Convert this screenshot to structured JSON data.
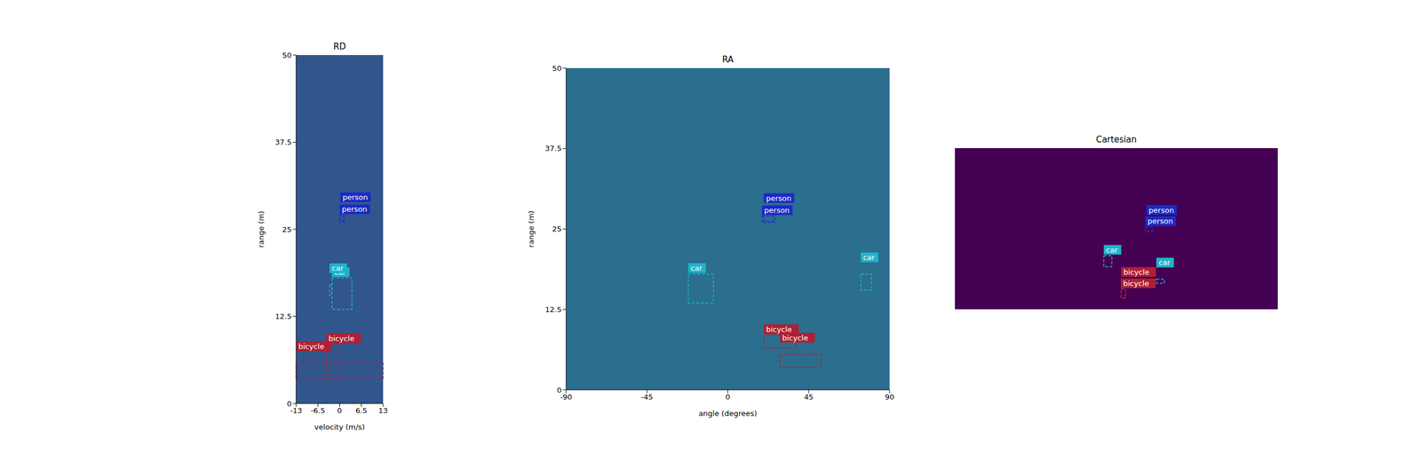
{
  "chart_data": [
    {
      "type": "boxes",
      "title": "RD",
      "x_label": "velocity (m/s)",
      "y_label": "range (m)",
      "xlim": [
        -13,
        13
      ],
      "xticks": [
        -13,
        -6.5,
        0,
        6.5,
        13
      ],
      "ylim": [
        0,
        50
      ],
      "yticks": [
        0,
        12.5,
        25,
        37.5,
        50
      ],
      "series": [
        {
          "name": "person",
          "color": "#1c2bc4",
          "boxes": [
            {
              "x": [
                0,
                1.3
              ],
              "y": [
                26,
                27
              ]
            },
            {
              "x": [
                0.2,
                1.2
              ],
              "y": [
                26.2,
                27.2
              ]
            }
          ]
        },
        {
          "name": "car",
          "color": "#1fb5c9",
          "boxes": [
            {
              "x": [
                -2.3,
                3.7
              ],
              "y": [
                13.5,
                18
              ]
            },
            {
              "x": [
                -3,
                -2.3
              ],
              "y": [
                15.5,
                17
              ]
            }
          ]
        },
        {
          "name": "bicycle",
          "color": "#b01f32",
          "boxes": [
            {
              "x": [
                -4,
                0.5
              ],
              "y": [
                3.5,
                8.5
              ]
            },
            {
              "x": [
                -13,
                13
              ],
              "y": [
                3.5,
                5.8
              ]
            }
          ]
        }
      ]
    },
    {
      "type": "boxes",
      "title": "RA",
      "x_label": "angle (degrees)",
      "y_label": "range (m)",
      "xlim": [
        -90,
        90
      ],
      "xticks": [
        -90,
        -45,
        0,
        45,
        90
      ],
      "ylim": [
        0,
        50
      ],
      "yticks": [
        0,
        12.5,
        25,
        37.5,
        50
      ],
      "series": [
        {
          "name": "person",
          "color": "#1c2bc4",
          "boxes": [
            {
              "x": [
                19,
                26
              ],
              "y": [
                26,
                27
              ]
            },
            {
              "x": [
                20,
                26
              ],
              "y": [
                26.2,
                27.2
              ]
            }
          ]
        },
        {
          "name": "car",
          "color": "#1fb5c9",
          "boxes": [
            {
              "x": [
                -22,
                -8
              ],
              "y": [
                13.5,
                18
              ]
            },
            {
              "x": [
                74,
                80
              ],
              "y": [
                15.5,
                18
              ]
            }
          ]
        },
        {
          "name": "bicycle",
          "color": "#b01f32",
          "boxes": [
            {
              "x": [
                20,
                38
              ],
              "y": [
                6.5,
                8.5
              ]
            },
            {
              "x": [
                29,
                52
              ],
              "y": [
                3.5,
                5.5
              ]
            }
          ]
        }
      ]
    },
    {
      "type": "boxes",
      "title": "Cartesian",
      "xlim": [
        -50,
        50
      ],
      "ylim": [
        0,
        50
      ],
      "tick_labels": false,
      "series": [
        {
          "name": "person",
          "color": "#1c2bc4",
          "boxes": [
            {
              "x": [
                9,
                11
              ],
              "y": [
                24,
                25.5
              ]
            },
            {
              "x": [
                9.3,
                11.2
              ],
              "y": [
                24.2,
                25.6
              ]
            }
          ]
        },
        {
          "name": "car",
          "color": "#1fb5c9",
          "boxes": [
            {
              "x": [
                -3.9,
                -1.4
              ],
              "y": [
                13.2,
                16.6
              ]
            },
            {
              "x": [
                12.4,
                14.9
              ],
              "y": [
                8.1,
                9.3
              ]
            }
          ]
        },
        {
          "name": "bicycle",
          "color": "#b01f32",
          "boxes": [
            {
              "x": [
                1.4,
                2.8
              ],
              "y": [
                3.4,
                6.2
              ]
            },
            {
              "x": [
                1.5,
                2.9
              ],
              "y": [
                3.6,
                6.4
              ]
            }
          ]
        }
      ]
    }
  ]
}
